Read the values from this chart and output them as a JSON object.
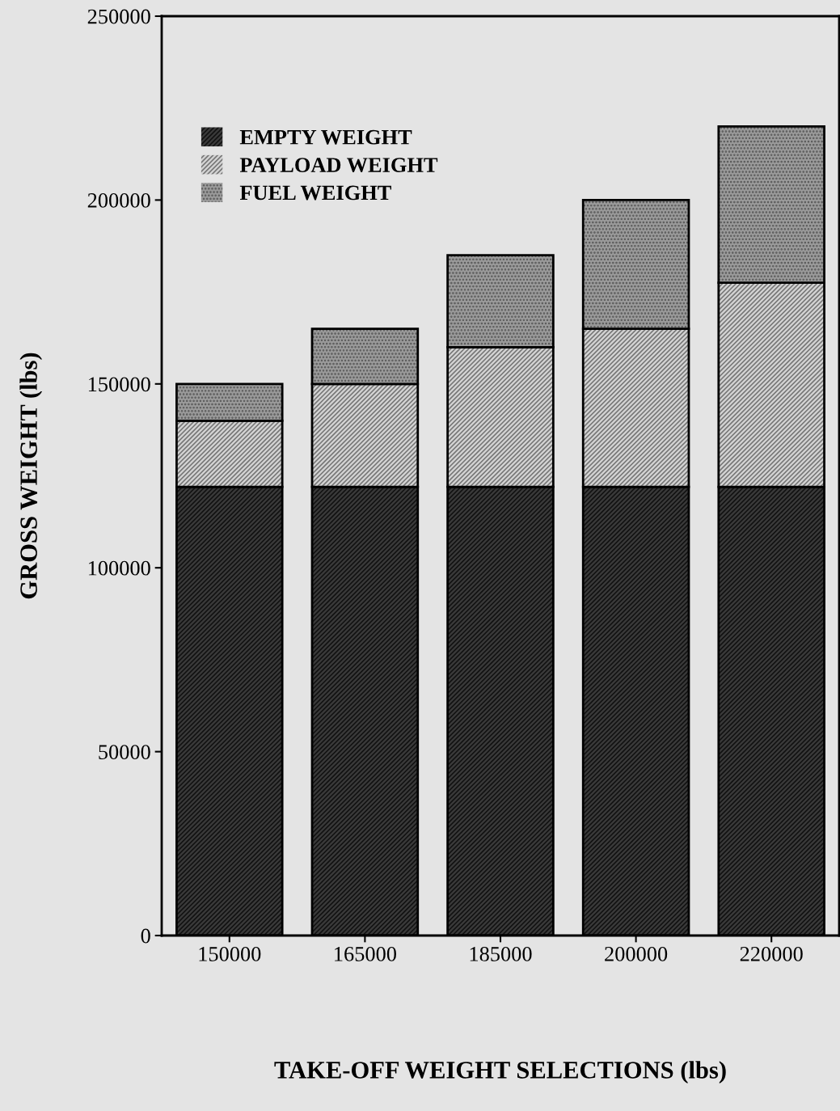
{
  "chart_data": {
    "type": "bar",
    "stacked": true,
    "xlabel": "TAKE-OFF WEIGHT SELECTIONS (lbs)",
    "ylabel": "GROSS WEIGHT (lbs)",
    "categories": [
      "150000",
      "165000",
      "185000",
      "200000",
      "220000"
    ],
    "series": [
      {
        "name": "EMPTY WEIGHT",
        "color": "#3a3a3a",
        "values": [
          122000,
          122000,
          122000,
          122000,
          122000
        ]
      },
      {
        "name": "PAYLOAD WEIGHT",
        "color": "#d4d4d4",
        "values": [
          18000,
          28000,
          38000,
          43000,
          55500
        ]
      },
      {
        "name": "FUEL WEIGHT",
        "color": "#9a9a9a",
        "values": [
          10000,
          15000,
          25000,
          35000,
          42500
        ]
      }
    ],
    "ylim": [
      0,
      250000
    ],
    "yticks": [
      0,
      50000,
      100000,
      150000,
      200000,
      250000
    ],
    "grid": false,
    "legend": "top left"
  }
}
